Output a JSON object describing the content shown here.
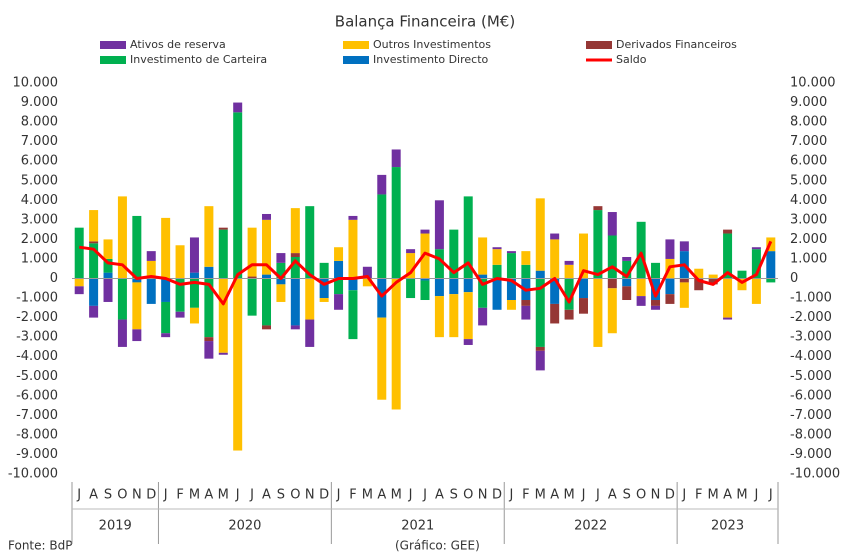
{
  "chart_data": {
    "type": "bar",
    "title": "Balança Financeira (M€)",
    "categories": [
      "J",
      "A",
      "S",
      "O",
      "N",
      "D",
      "J",
      "F",
      "M",
      "A",
      "M",
      "J",
      "J",
      "A",
      "S",
      "O",
      "N",
      "D",
      "J",
      "F",
      "M",
      "A",
      "M",
      "J",
      "J",
      "A",
      "S",
      "O",
      "N",
      "D",
      "J",
      "F",
      "M",
      "A",
      "M",
      "J",
      "J",
      "A",
      "S",
      "O",
      "N",
      "D",
      "J",
      "F",
      "M",
      "A",
      "M",
      "J",
      "J"
    ],
    "years": [
      "2019",
      "2020",
      "2021",
      "2022",
      "2023"
    ],
    "series": [
      {
        "name": "Ativos de reserva",
        "color": "#7030a0",
        "values": [
          -400,
          -600,
          -1200,
          -1400,
          -600,
          500,
          -200,
          -300,
          1800,
          -900,
          -100,
          500,
          0,
          300,
          500,
          -200,
          -1400,
          0,
          -800,
          200,
          600,
          1000,
          900,
          200,
          200,
          2500,
          0,
          -300,
          -900,
          100,
          100,
          -700,
          -1000,
          300,
          200,
          0,
          0,
          1200,
          200,
          -500,
          -200,
          1000,
          500,
          0,
          0,
          -100,
          0,
          100,
          0
        ]
      },
      {
        "name": "Outros Investimentos",
        "color": "#ffc000",
        "values": [
          -400,
          1600,
          1000,
          4200,
          -2400,
          900,
          3100,
          1700,
          -800,
          3100,
          -3800,
          -8800,
          2500,
          2800,
          -900,
          2300,
          -2100,
          -200,
          700,
          3000,
          -400,
          -4200,
          -6700,
          1300,
          2300,
          -2100,
          -2200,
          -2400,
          1900,
          800,
          -500,
          700,
          3700,
          2000,
          700,
          2300,
          -3500,
          -2300,
          0,
          -900,
          0,
          1000,
          -1300,
          500,
          200,
          -2000,
          -600,
          -1300,
          700
        ]
      },
      {
        "name": "Derivados Financeiros",
        "color": "#953735",
        "values": [
          0,
          100,
          0,
          0,
          0,
          0,
          0,
          0,
          0,
          -200,
          100,
          0,
          100,
          -200,
          0,
          200,
          0,
          0,
          0,
          0,
          0,
          0,
          0,
          0,
          0,
          0,
          0,
          0,
          0,
          0,
          0,
          -300,
          -200,
          -1000,
          -500,
          -800,
          200,
          -500,
          -700,
          0,
          -300,
          -500,
          -200,
          -600,
          -300,
          200,
          0,
          0,
          0
        ]
      },
      {
        "name": "Investimento de Carteira",
        "color": "#00b050",
        "values": [
          2600,
          1800,
          700,
          -2100,
          3200,
          0,
          -1600,
          -1700,
          -1500,
          -3000,
          2500,
          8500,
          -1900,
          -2400,
          800,
          1100,
          3700,
          800,
          -800,
          -2500,
          0,
          4300,
          5700,
          -1000,
          -1000,
          1500,
          2500,
          4200,
          -1500,
          700,
          1300,
          700,
          -3500,
          0,
          -1600,
          0,
          3500,
          2200,
          900,
          2900,
          800,
          0,
          0,
          0,
          0,
          2300,
          400,
          1500,
          -200
        ]
      },
      {
        "name": "Investimento Directo",
        "color": "#0070c0",
        "values": [
          0,
          -1400,
          300,
          0,
          -200,
          -1300,
          -1200,
          0,
          300,
          600,
          0,
          0,
          0,
          200,
          -300,
          -2400,
          0,
          -1000,
          900,
          -600,
          0,
          -2000,
          0,
          0,
          -100,
          -900,
          -800,
          -700,
          200,
          -1600,
          -1100,
          -1100,
          400,
          -1300,
          0,
          -1000,
          0,
          0,
          -400,
          0,
          -1100,
          -800,
          1400,
          0,
          0,
          0,
          0,
          0,
          1400
        ]
      },
      {
        "name": "Saldo",
        "color": "#ff0000",
        "type": "line",
        "values": [
          1600,
          1500,
          800,
          700,
          0,
          100,
          0,
          -300,
          -200,
          -300,
          -1300,
          200,
          700,
          700,
          0,
          900,
          200,
          -300,
          0,
          0,
          100,
          -900,
          -200,
          300,
          1300,
          1000,
          300,
          800,
          -300,
          0,
          -100,
          -600,
          -500,
          0,
          -1200,
          400,
          200,
          600,
          100,
          1300,
          -900,
          600,
          700,
          -100,
          -300,
          300,
          -200,
          200,
          1900
        ]
      }
    ],
    "ylim": [
      -10000,
      10000
    ],
    "yticks": [
      {
        "value": -10000,
        "label": "-10.000"
      },
      {
        "value": -9000,
        "label": "-9.000"
      },
      {
        "value": -8000,
        "label": "-8.000"
      },
      {
        "value": -7000,
        "label": "-7.000"
      },
      {
        "value": -6000,
        "label": "-6.000"
      },
      {
        "value": -5000,
        "label": "-5.000"
      },
      {
        "value": -4000,
        "label": "-4.000"
      },
      {
        "value": -3000,
        "label": "-3.000"
      },
      {
        "value": -2000,
        "label": "-2.000"
      },
      {
        "value": -1000,
        "label": "-1.000"
      },
      0,
      {
        "value": 1000,
        "label": "1.000"
      },
      {
        "value": 2000,
        "label": "2.000"
      },
      {
        "value": 3000,
        "label": "3.000"
      },
      {
        "value": 4000,
        "label": "4.000"
      },
      {
        "value": 5000,
        "label": "5.000"
      },
      {
        "value": 6000,
        "label": "6.000"
      },
      {
        "value": 7000,
        "label": "7.000"
      },
      {
        "value": 8000,
        "label": "8.000"
      },
      {
        "value": 9000,
        "label": "9.000"
      },
      {
        "value": 10000,
        "label": "10.000"
      }
    ],
    "source": "Fonte: BdP",
    "credit": "(Gráfico: GEE)"
  }
}
